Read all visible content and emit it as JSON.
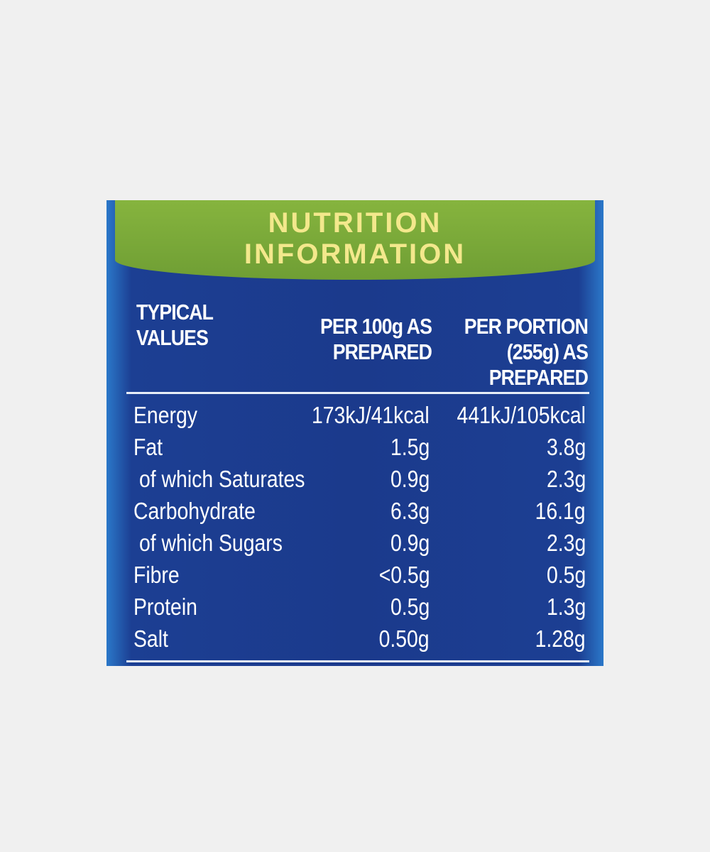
{
  "title": "NUTRITION INFORMATION",
  "colors": {
    "panel": "#1b3a8c",
    "banner": "#7aa83a",
    "banner_text": "#f3e88c",
    "background": "#f0f0f0"
  },
  "headers": [
    "TYPICAL VALUES",
    "PER 100g AS PREPARED",
    "PER PORTION (255g) AS PREPARED"
  ],
  "rows": [
    {
      "label": "Energy",
      "per100": "173kJ/41kcal",
      "portion": "441kJ/105kcal"
    },
    {
      "label": "Fat",
      "per100": "1.5g",
      "portion": "3.8g"
    },
    {
      "label": "of which Saturates",
      "per100": "0.9g",
      "portion": "2.3g"
    },
    {
      "label": "Carbohydrate",
      "per100": "6.3g",
      "portion": "16.1g"
    },
    {
      "label": "of which Sugars",
      "per100": "0.9g",
      "portion": "2.3g"
    },
    {
      "label": "Fibre",
      "per100": "<0.5g",
      "portion": "0.5g"
    },
    {
      "label": "Protein",
      "per100": "0.5g",
      "portion": "1.3g"
    },
    {
      "label": "Salt",
      "per100": "0.50g",
      "portion": "1.28g"
    }
  ]
}
